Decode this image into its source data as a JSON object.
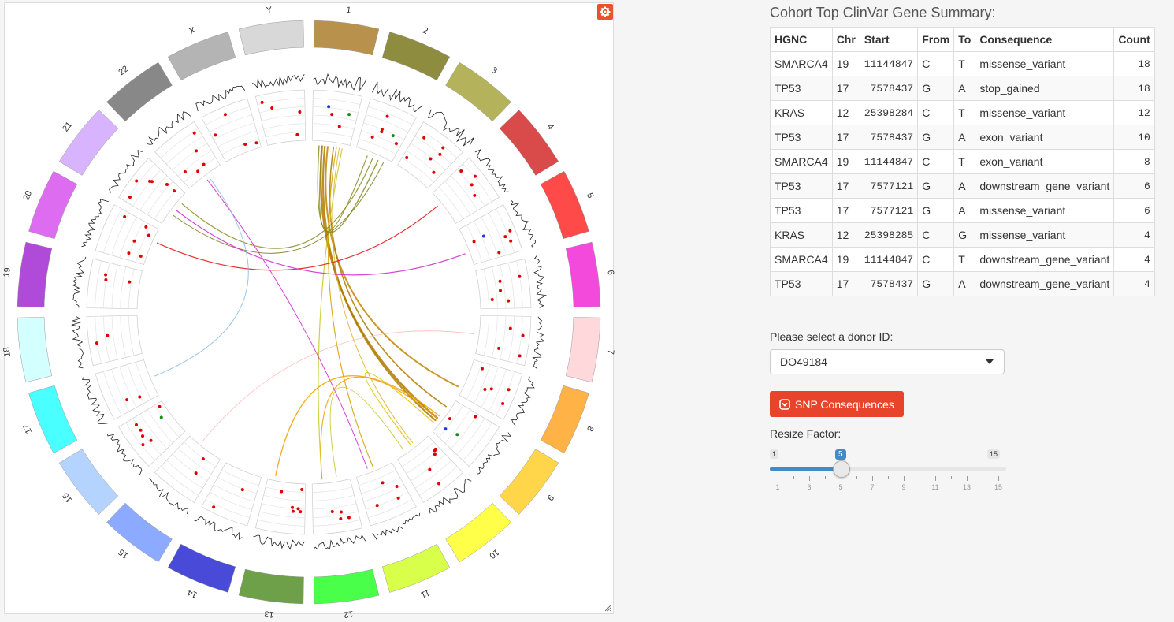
{
  "circos": {
    "chromosomes": [
      {
        "name": "1",
        "color": "#b8914d"
      },
      {
        "name": "2",
        "color": "#8e8c3f"
      },
      {
        "name": "3",
        "color": "#b4b35c"
      },
      {
        "name": "4",
        "color": "#d94a4a"
      },
      {
        "name": "5",
        "color": "#ff4a4a"
      },
      {
        "name": "6",
        "color": "#f44adb"
      },
      {
        "name": "7",
        "color": "#ffd8dc"
      },
      {
        "name": "8",
        "color": "#ffb347"
      },
      {
        "name": "9",
        "color": "#ffd54a"
      },
      {
        "name": "10",
        "color": "#ffff4a"
      },
      {
        "name": "11",
        "color": "#d8ff4a"
      },
      {
        "name": "12",
        "color": "#4aff4a"
      },
      {
        "name": "13",
        "color": "#6ea04a"
      },
      {
        "name": "14",
        "color": "#4a4ad9"
      },
      {
        "name": "15",
        "color": "#8caaff"
      },
      {
        "name": "16",
        "color": "#b4d4ff"
      },
      {
        "name": "17",
        "color": "#4affff"
      },
      {
        "name": "18",
        "color": "#d4ffff"
      },
      {
        "name": "19",
        "color": "#b04ad9"
      },
      {
        "name": "20",
        "color": "#dd6cf0"
      },
      {
        "name": "21",
        "color": "#d8b4ff"
      },
      {
        "name": "22",
        "color": "#888888"
      },
      {
        "name": "X",
        "color": "#b4b4b4"
      },
      {
        "name": "Y",
        "color": "#d8d8d8"
      }
    ],
    "gear_icon": "gear-icon",
    "resize_icon": "resize-handle-icon"
  },
  "summary": {
    "title": "Cohort Top ClinVar Gene Summary:",
    "columns": [
      "HGNC",
      "Chr",
      "Start",
      "From",
      "To",
      "Consequence",
      "Count"
    ],
    "rows": [
      [
        "SMARCA4",
        "19",
        "11144847",
        "C",
        "T",
        "missense_variant",
        "18"
      ],
      [
        "TP53",
        "17",
        "7578437",
        "G",
        "A",
        "stop_gained",
        "18"
      ],
      [
        "KRAS",
        "12",
        "25398284",
        "C",
        "T",
        "missense_variant",
        "12"
      ],
      [
        "TP53",
        "17",
        "7578437",
        "G",
        "A",
        "exon_variant",
        "10"
      ],
      [
        "SMARCA4",
        "19",
        "11144847",
        "C",
        "T",
        "exon_variant",
        "8"
      ],
      [
        "TP53",
        "17",
        "7577121",
        "G",
        "A",
        "downstream_gene_variant",
        "6"
      ],
      [
        "TP53",
        "17",
        "7577121",
        "G",
        "A",
        "missense_variant",
        "6"
      ],
      [
        "KRAS",
        "12",
        "25398285",
        "C",
        "G",
        "missense_variant",
        "4"
      ],
      [
        "SMARCA4",
        "19",
        "11144847",
        "C",
        "T",
        "downstream_gene_variant",
        "4"
      ],
      [
        "TP53",
        "17",
        "7578437",
        "G",
        "A",
        "downstream_gene_variant",
        "4"
      ]
    ]
  },
  "donor": {
    "label": "Please select a donor ID:",
    "selected": "DO49184",
    "chevron_icon": "caret-down-icon"
  },
  "snp_button": {
    "label": "SNP Consequences",
    "icon": "download-icon",
    "color": "#e8442c"
  },
  "resize": {
    "label": "Resize Factor:",
    "min": 1,
    "max": 15,
    "value": 5,
    "min_label": "1",
    "max_label": "15",
    "value_label": "5",
    "tick_labels": [
      "1",
      "3",
      "5",
      "7",
      "9",
      "11",
      "13",
      "15"
    ],
    "accent": "#428bca"
  }
}
